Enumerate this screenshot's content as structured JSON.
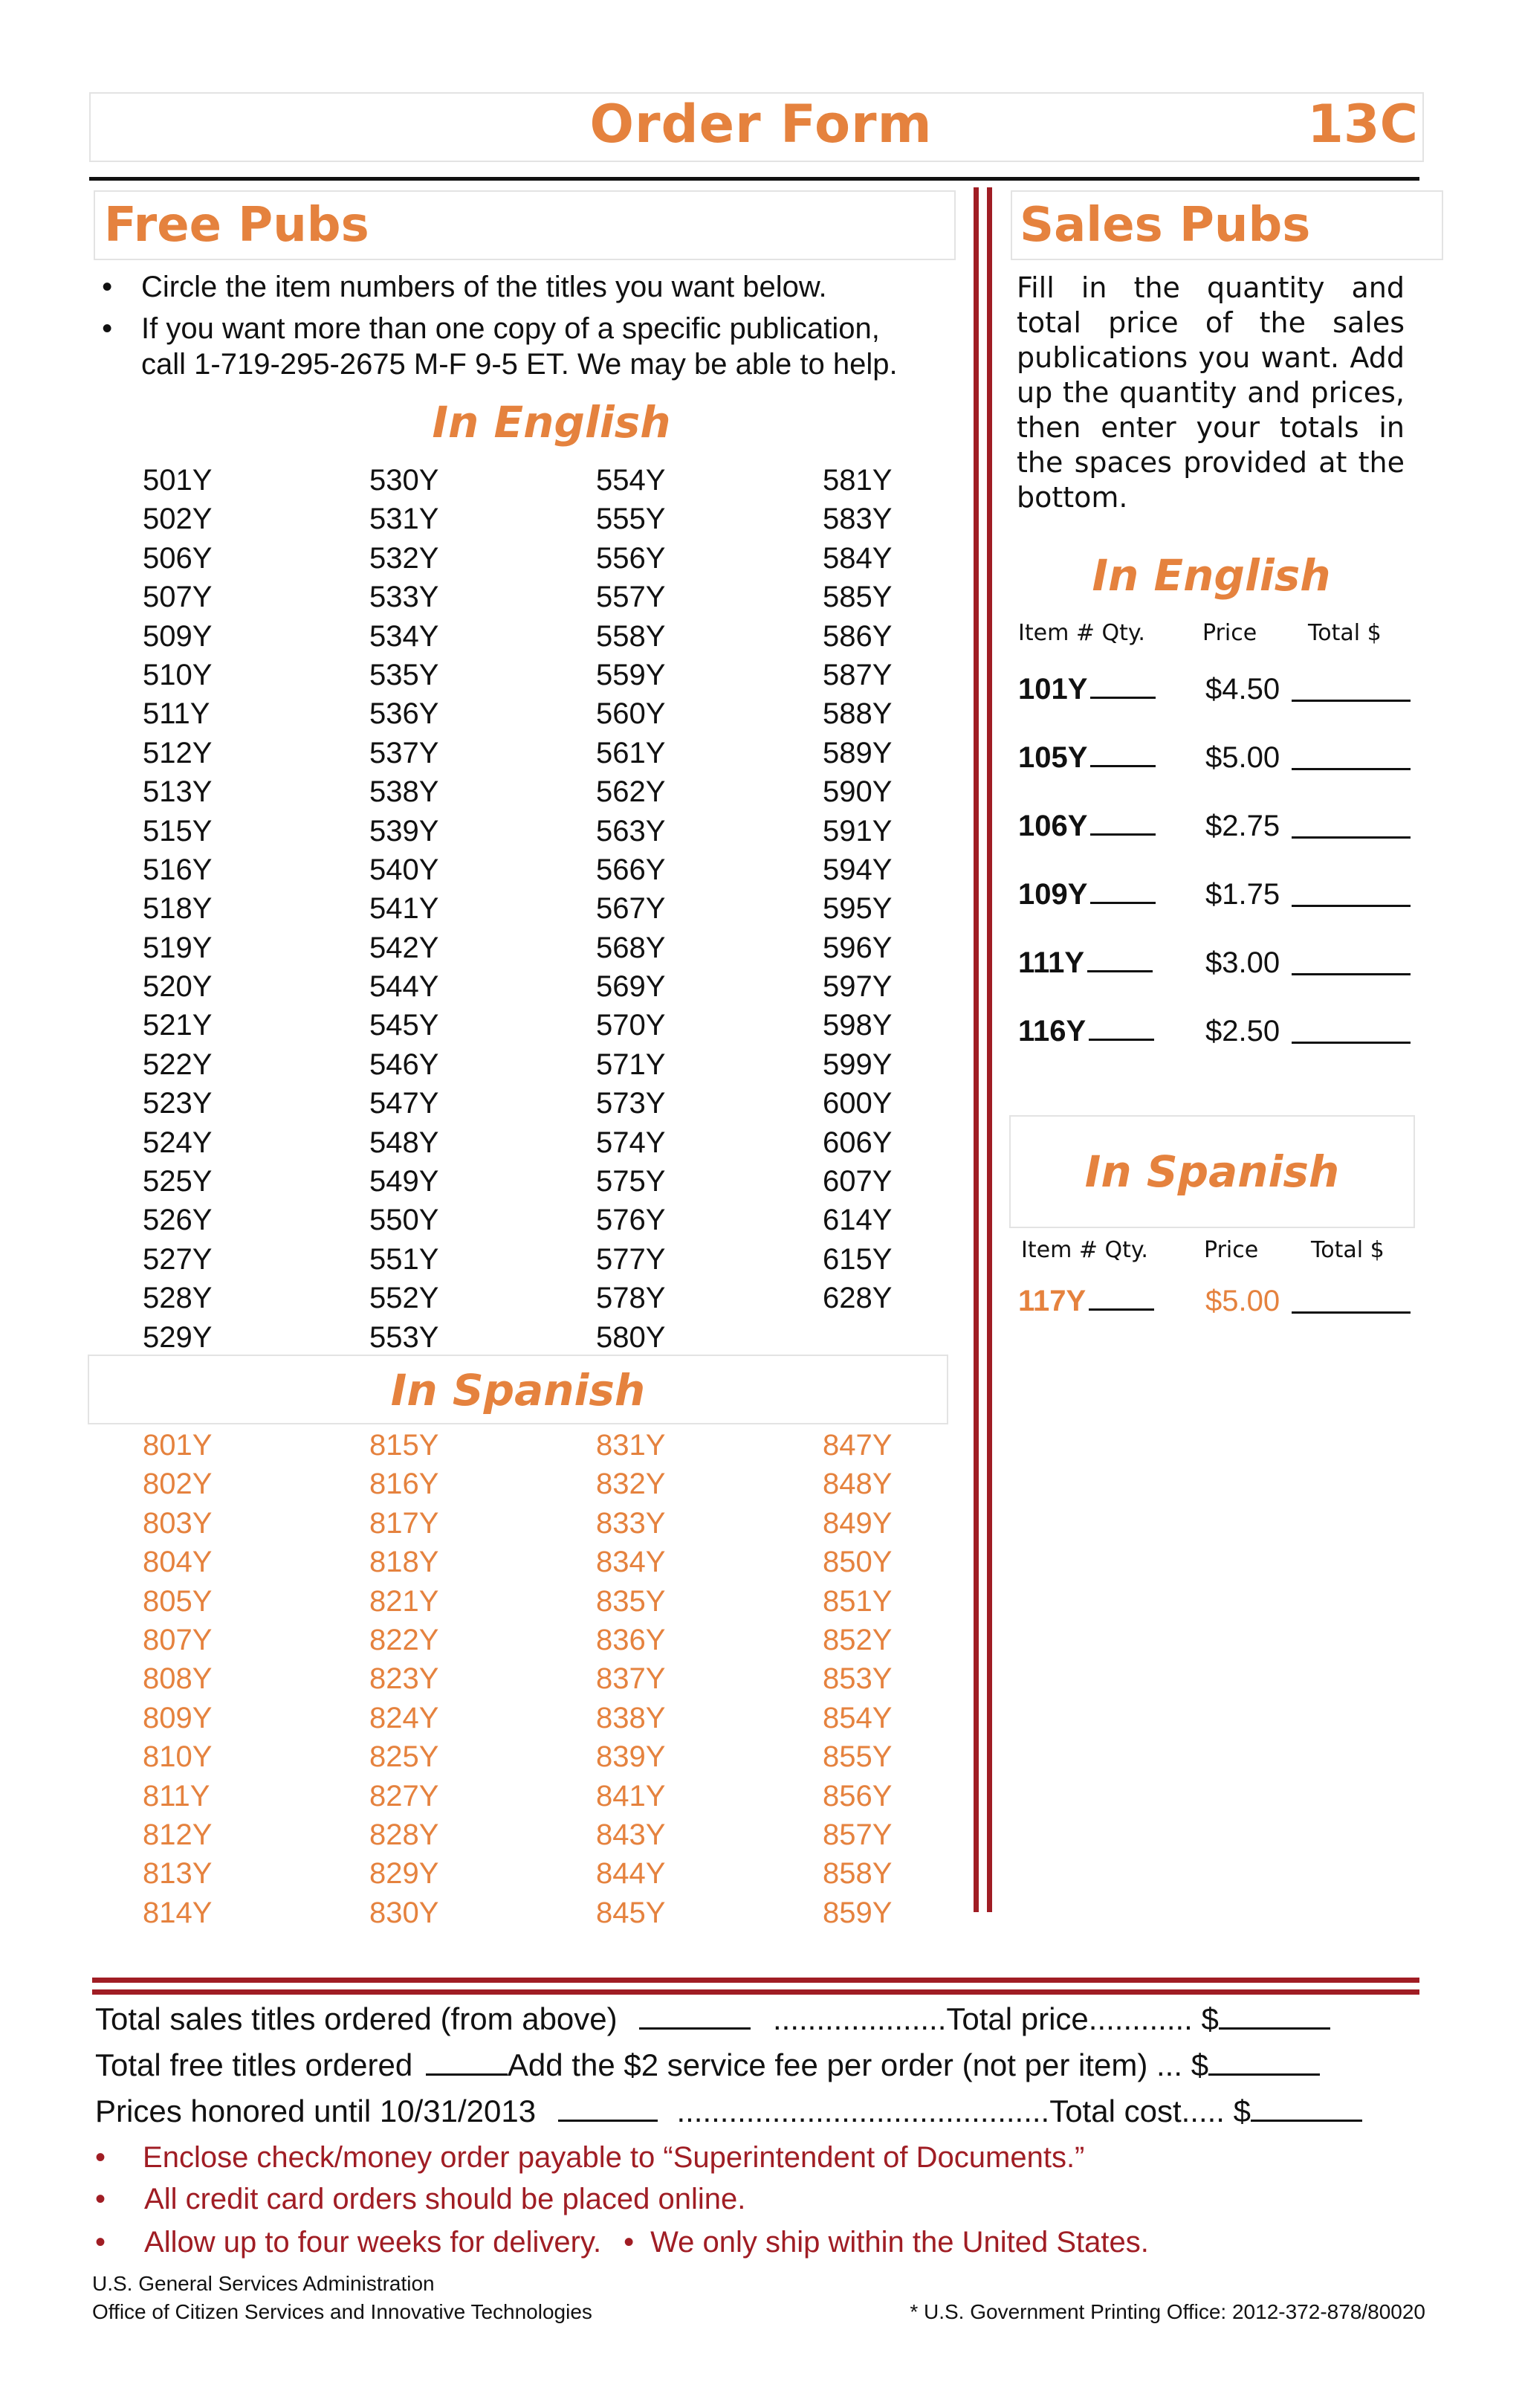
{
  "header": {
    "title": "Order Form",
    "code": "13C"
  },
  "free_pubs": {
    "title": "Free Pubs",
    "bullets": [
      "Circle the item numbers of the titles you want below.",
      "If you want more than one copy of a specific publication,",
      "call 1-719-295-2675 M-F 9-5 ET. We may be able to help."
    ],
    "english_heading": "In English",
    "english_columns": [
      [
        "501Y",
        "502Y",
        "506Y",
        "507Y",
        "509Y",
        "510Y",
        "511Y",
        "512Y",
        "513Y",
        "515Y",
        "516Y",
        "518Y",
        "519Y",
        "520Y",
        "521Y",
        "522Y",
        "523Y",
        "524Y",
        "525Y",
        "526Y",
        "527Y",
        "528Y",
        "529Y"
      ],
      [
        "530Y",
        "531Y",
        "532Y",
        "533Y",
        "534Y",
        "535Y",
        "536Y",
        "537Y",
        "538Y",
        "539Y",
        "540Y",
        "541Y",
        "542Y",
        "544Y",
        "545Y",
        "546Y",
        "547Y",
        "548Y",
        "549Y",
        "550Y",
        "551Y",
        "552Y",
        "553Y"
      ],
      [
        "554Y",
        "555Y",
        "556Y",
        "557Y",
        "558Y",
        "559Y",
        "560Y",
        "561Y",
        "562Y",
        "563Y",
        "566Y",
        "567Y",
        "568Y",
        "569Y",
        "570Y",
        "571Y",
        "573Y",
        "574Y",
        "575Y",
        "576Y",
        "577Y",
        "578Y",
        "580Y"
      ],
      [
        "581Y",
        "583Y",
        "584Y",
        "585Y",
        "586Y",
        "587Y",
        "588Y",
        "589Y",
        "590Y",
        "591Y",
        "594Y",
        "595Y",
        "596Y",
        "597Y",
        "598Y",
        "599Y",
        "600Y",
        "606Y",
        "607Y",
        "614Y",
        "615Y",
        "628Y"
      ]
    ],
    "spanish_heading": "In Spanish",
    "spanish_columns": [
      [
        "801Y",
        "802Y",
        "803Y",
        "804Y",
        "805Y",
        "807Y",
        "808Y",
        "809Y",
        "810Y",
        "811Y",
        "812Y",
        "813Y",
        "814Y"
      ],
      [
        "815Y",
        "816Y",
        "817Y",
        "818Y",
        "821Y",
        "822Y",
        "823Y",
        "824Y",
        "825Y",
        "827Y",
        "828Y",
        "829Y",
        "830Y"
      ],
      [
        "831Y",
        "832Y",
        "833Y",
        "834Y",
        "835Y",
        "836Y",
        "837Y",
        "838Y",
        "839Y",
        "841Y",
        "843Y",
        "844Y",
        "845Y"
      ],
      [
        "847Y",
        "848Y",
        "849Y",
        "850Y",
        "851Y",
        "852Y",
        "853Y",
        "854Y",
        "855Y",
        "856Y",
        "857Y",
        "858Y",
        "859Y"
      ]
    ]
  },
  "sales_pubs": {
    "title": "Sales Pubs",
    "intro": "Fill in the quantity and total price of the sales publications you want. Add up the quantity and prices, then enter your totals in the spaces provided at the bottom.",
    "english_heading": "In English",
    "col_item_qty": "Item #  Qty.",
    "col_price": "Price",
    "col_total": "Total $",
    "english_items": [
      {
        "item": "101Y",
        "price": "$4.50"
      },
      {
        "item": "105Y",
        "price": "$5.00"
      },
      {
        "item": "106Y",
        "price": "$2.75"
      },
      {
        "item": "109Y",
        "price": "$1.75"
      },
      {
        "item": "111Y",
        "price": "$3.00"
      },
      {
        "item": "116Y",
        "price": "$2.50"
      }
    ],
    "spanish_heading": "In Spanish",
    "spanish_items": [
      {
        "item": "117Y",
        "price": "$5.00"
      }
    ]
  },
  "totals": {
    "line1_left": "Total sales titles ordered (from above)",
    "line1_dots": "....................",
    "line1_right": "Total price",
    "line1_dots2": "............",
    "line2_left": "Total free titles ordered",
    "line2_mid": "Add the $2 service fee per order (not per item)",
    "line2_dots": "...",
    "line3_left": "Prices honored until 10/31/2013",
    "line3_dots": "...........................................",
    "line3_right": "Total cost",
    "line3_dots2": ".....",
    "dollar": "$"
  },
  "notes": {
    "n1": "Enclose check/money order payable to “Superintendent of Documents.”",
    "n2": "All  credit card orders should be placed online.",
    "n3a": "Allow up to four weeks for delivery.",
    "n3b": "We only ship within the United States.",
    "bullet": "•"
  },
  "footer": {
    "agency1": "U.S. General Services Administration",
    "agency2": "Office of Citizen Services and Innovative Technologies",
    "gpo": "* U.S. Government Printing Office: 2012-372-878/80020"
  }
}
